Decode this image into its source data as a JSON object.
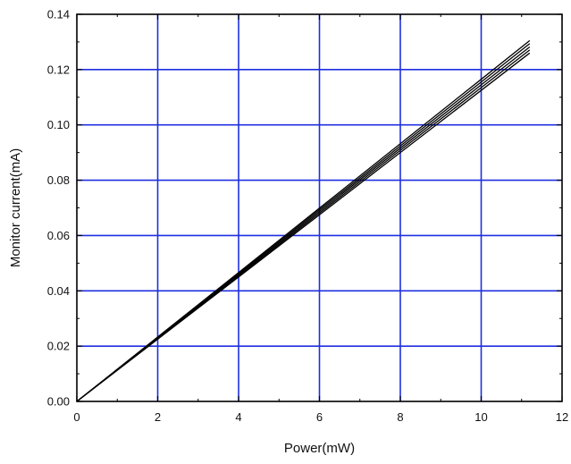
{
  "chart_data": {
    "type": "line",
    "title": "",
    "xlabel": "Power(mW)",
    "ylabel": "Monitor current(mA)",
    "xlim": [
      0,
      12
    ],
    "ylim": [
      0,
      0.14
    ],
    "xticks": [
      0,
      2,
      4,
      6,
      8,
      10,
      12
    ],
    "xtick_labels": [
      "0",
      "2",
      "4",
      "6",
      "8",
      "10",
      "12"
    ],
    "yticks": [
      0,
      0.02,
      0.04,
      0.06,
      0.08,
      0.1,
      0.12,
      0.14
    ],
    "ytick_labels": [
      "0.00",
      "0.02",
      "0.04",
      "0.06",
      "0.08",
      "0.10",
      "0.12",
      "0.14"
    ],
    "grid": true,
    "legend": "none",
    "colors": {
      "grid": "#1f2fe0",
      "series": "#000000",
      "frame": "#000000",
      "background": "#ffffff"
    },
    "series": [
      {
        "x": [
          0,
          2,
          4,
          6,
          8,
          10,
          11.2
        ],
        "y": [
          0,
          0.0233,
          0.0466,
          0.0699,
          0.0932,
          0.1165,
          0.1305
        ]
      },
      {
        "x": [
          0,
          2,
          4,
          6,
          8,
          10,
          11.2
        ],
        "y": [
          0,
          0.0231,
          0.0462,
          0.0693,
          0.0924,
          0.1155,
          0.1294
        ]
      },
      {
        "x": [
          0,
          2,
          4,
          6,
          8,
          10,
          11.2
        ],
        "y": [
          0,
          0.0229,
          0.0458,
          0.0687,
          0.0916,
          0.1145,
          0.1282
        ]
      },
      {
        "x": [
          0,
          2,
          4,
          6,
          8,
          10,
          11.2
        ],
        "y": [
          0,
          0.0227,
          0.0454,
          0.0681,
          0.0908,
          0.1135,
          0.1271
        ]
      },
      {
        "x": [
          0,
          2,
          4,
          6,
          8,
          10,
          11.2
        ],
        "y": [
          0,
          0.0225,
          0.045,
          0.0675,
          0.09,
          0.1125,
          0.126
        ]
      }
    ]
  }
}
